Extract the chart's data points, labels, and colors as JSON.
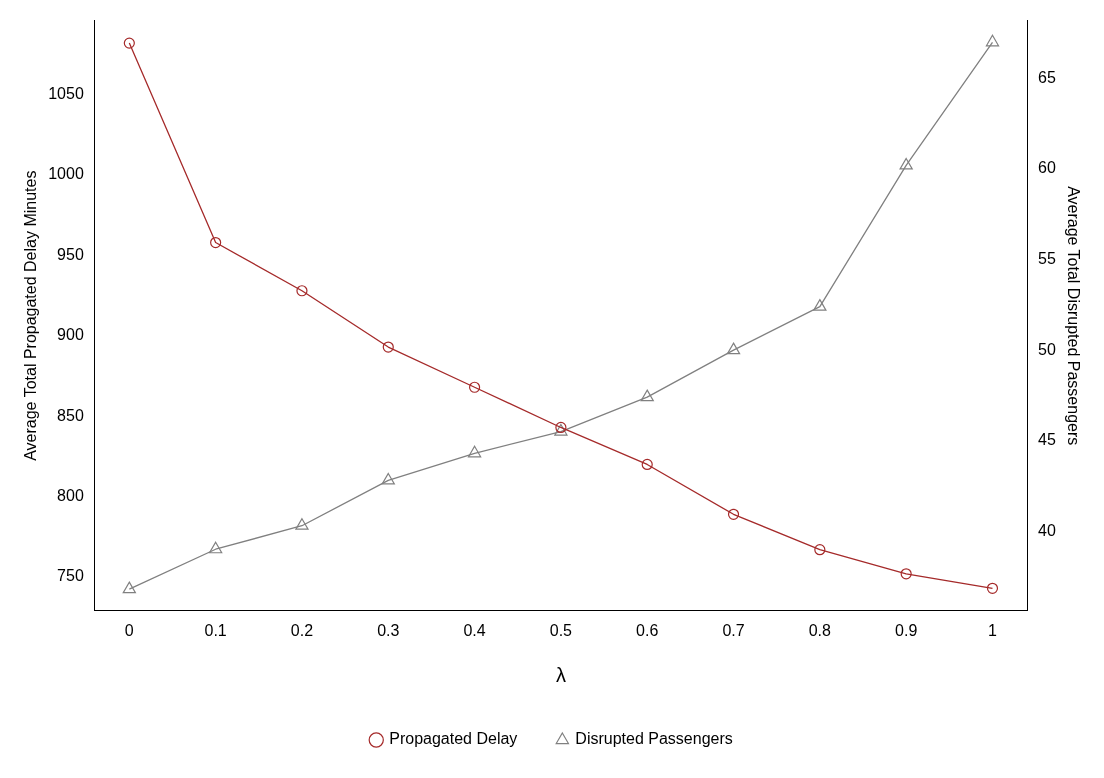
{
  "chart_data": {
    "type": "line",
    "xlabel": "λ",
    "ylabel": "Average Total Propagated Delay Minutes",
    "y2label": "Average Total Disrupted Passengers",
    "x": [
      0,
      0.1,
      0.2,
      0.3,
      0.4,
      0.5,
      0.6,
      0.7,
      0.8,
      0.9,
      1
    ],
    "series": [
      {
        "name": "Propagated Delay",
        "color": "#a52a2a",
        "marker": "circle",
        "values": [
          1082,
          958,
          928,
          893,
          868,
          843,
          820,
          789,
          767,
          752,
          743
        ]
      },
      {
        "name": "Disrupted Passengers",
        "color": "#808080",
        "marker": "triangle",
        "axis": "y2",
        "values": [
          36.8,
          39.0,
          40.3,
          42.8,
          44.3,
          45.5,
          47.4,
          50.0,
          52.4,
          60.2,
          67.0
        ]
      }
    ],
    "xlim": [
      -0.04,
      1.04
    ],
    "xticks": [
      0,
      0.1,
      0.2,
      0.3,
      0.4,
      0.5,
      0.6,
      0.7,
      0.8,
      0.9,
      1
    ],
    "ylim": [
      729,
      1096
    ],
    "yticks": [
      750,
      800,
      850,
      900,
      950,
      1000,
      1050
    ],
    "y2lim": [
      35.6,
      68.2
    ],
    "y2ticks": [
      40,
      45,
      50,
      55,
      60,
      65
    ],
    "grid": false,
    "legend": "bottom",
    "line_style": "solid"
  }
}
